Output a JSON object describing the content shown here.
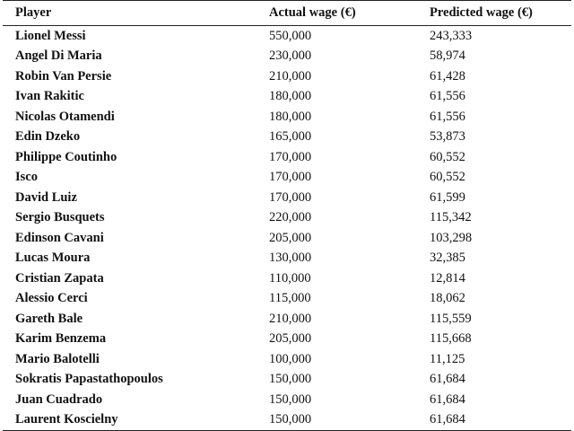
{
  "table": {
    "headers": {
      "player": "Player",
      "actual": "Actual wage (€)",
      "predicted": "Predicted wage (€)"
    },
    "rows": [
      {
        "player": "Lionel Messi",
        "actual": "550,000",
        "predicted": "243,333"
      },
      {
        "player": "Angel Di Maria",
        "actual": "230,000",
        "predicted": "58,974"
      },
      {
        "player": "Robin Van Persie",
        "actual": "210,000",
        "predicted": "61,428"
      },
      {
        "player": "Ivan Rakitic",
        "actual": "180,000",
        "predicted": "61,556"
      },
      {
        "player": "Nicolas Otamendi",
        "actual": "180,000",
        "predicted": "61,556"
      },
      {
        "player": "Edin Dzeko",
        "actual": "165,000",
        "predicted": "53,873"
      },
      {
        "player": "Philippe Coutinho",
        "actual": "170,000",
        "predicted": "60,552"
      },
      {
        "player": "Isco",
        "actual": "170,000",
        "predicted": "60,552"
      },
      {
        "player": "David Luiz",
        "actual": "170,000",
        "predicted": "61,599"
      },
      {
        "player": "Sergio Busquets",
        "actual": "220,000",
        "predicted": "115,342"
      },
      {
        "player": "Edinson Cavani",
        "actual": "205,000",
        "predicted": "103,298"
      },
      {
        "player": "Lucas Moura",
        "actual": "130,000",
        "predicted": "32,385"
      },
      {
        "player": "Cristian Zapata",
        "actual": "110,000",
        "predicted": "12,814"
      },
      {
        "player": "Alessio Cerci",
        "actual": "115,000",
        "predicted": "18,062"
      },
      {
        "player": "Gareth Bale",
        "actual": "210,000",
        "predicted": "115,559"
      },
      {
        "player": "Karim Benzema",
        "actual": "205,000",
        "predicted": "115,668"
      },
      {
        "player": "Mario Balotelli",
        "actual": "100,000",
        "predicted": "11,125"
      },
      {
        "player": "Sokratis Papastathopoulos",
        "actual": "150,000",
        "predicted": "61,684"
      },
      {
        "player": "Juan Cuadrado",
        "actual": "150,000",
        "predicted": "61,684"
      },
      {
        "player": "Laurent Koscielny",
        "actual": "150,000",
        "predicted": "61,684"
      }
    ]
  }
}
